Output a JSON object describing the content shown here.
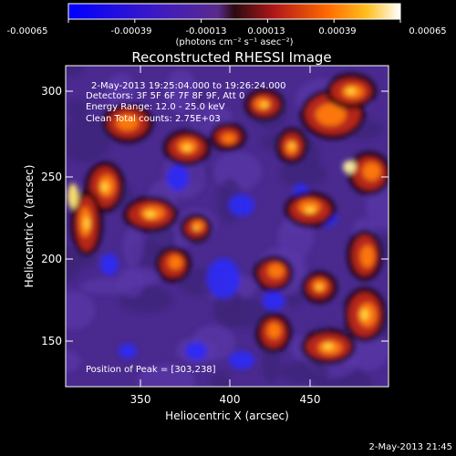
{
  "colorbar": {
    "ticks": [
      "-0.00065",
      "-0.00039",
      "-0.00013",
      "0.00013",
      "0.00039",
      "0.00065"
    ],
    "units_line": "(photons cm⁻² s⁻¹ asec⁻²)"
  },
  "plot": {
    "title": "Reconstructed RHESSI Image",
    "xlabel": "Heliocentric X (arcsec)",
    "ylabel": "Heliocentric Y (arcsec)",
    "x_ticks": [
      "350",
      "400",
      "450"
    ],
    "y_ticks": [
      "300",
      "250",
      "200",
      "150"
    ]
  },
  "annotations": {
    "time_range": "2-May-2013 19:25:04.000 to 19:26:24.000",
    "detectors": "Detectors: 3F 5F 6F 7F 8F 9F, Att 0",
    "energy": "Energy Range: 12.0 - 25.0 keV",
    "clean": "Clean     Total counts: 2.75E+03",
    "peak": "Position of Peak = [303,238]"
  },
  "footer": {
    "timestamp": "2-May-2013 21:45"
  },
  "colors": {
    "background": "#000000",
    "text": "#ffffff",
    "image_base": "#4a2a8f"
  }
}
